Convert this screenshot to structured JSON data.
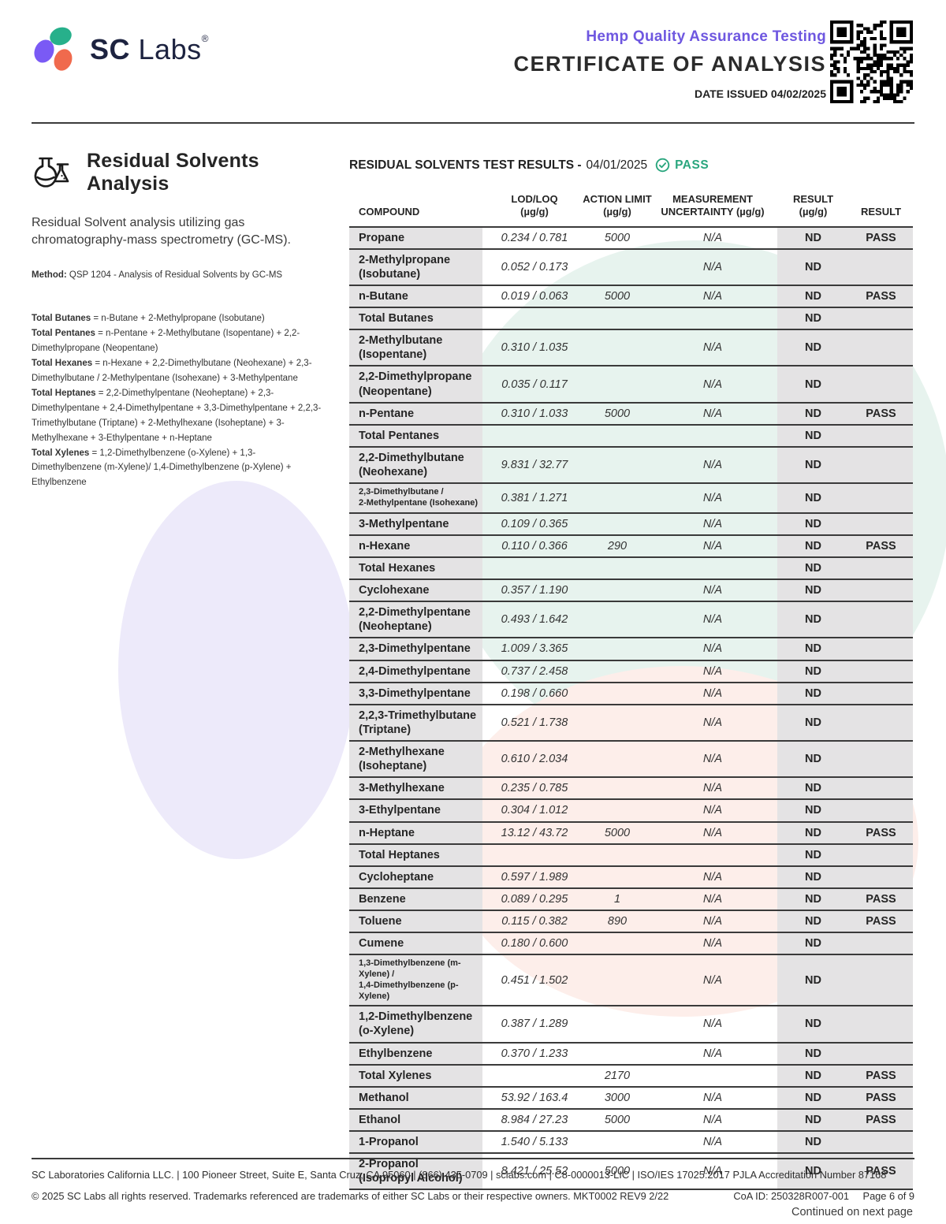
{
  "header": {
    "brand_sc": "SC",
    "brand_labs": "Labs",
    "brand_reg": "®",
    "program": "Hemp Quality Assurance Testing",
    "title": "CERTIFICATE OF ANALYSIS",
    "date_issued": "DATE ISSUED 04/02/2025"
  },
  "section": {
    "title": "Residual Solvents Analysis",
    "description": "Residual Solvent analysis utilizing gas chromatography-mass spectrometry (GC-MS).",
    "method_label": "Method:",
    "method_text": " QSP 1204 - Analysis of Residual Solvents by GC-MS",
    "notes": [
      {
        "label": "Total Butanes",
        "text": " = n-Butane + 2-Methylpropane (Isobutane)"
      },
      {
        "label": "Total Pentanes",
        "text": " = n-Pentane + 2-Methylbutane (Isopentane) + 2,2-Dimethylpropane (Neopentane)"
      },
      {
        "label": "Total Hexanes",
        "text": " = n-Hexane + 2,2-Dimethylbutane (Neohexane) + 2,3-Dimethylbutane / 2-Methylpentane (Isohexane) + 3-Methylpentane"
      },
      {
        "label": "Total Heptanes",
        "text": " = 2,2-Dimethylpentane (Neoheptane) + 2,3-Dimethylpentane + 2,4-Dimethylpentane + 3,3-Dimethylpentane + 2,2,3-Trimethylbutane (Triptane) + 2-Methylhexane (Isoheptane) + 3-Methylhexane + 3-Ethylpentane + n-Heptane"
      },
      {
        "label": "Total Xylenes",
        "text": " = 1,2-Dimethylbenzene (o-Xylene) + 1,3-Dimethylbenzene (m-Xylene)/ 1,4-Dimethylbenzene (p-Xylene) + Ethylbenzene"
      }
    ]
  },
  "results": {
    "title": "RESIDUAL SOLVENTS TEST RESULTS -",
    "date": "04/01/2025",
    "status": "PASS",
    "columns": [
      {
        "l1": "COMPOUND",
        "l2": ""
      },
      {
        "l1": "LOD/LOQ",
        "l2": "(µg/g)"
      },
      {
        "l1": "ACTION LIMIT",
        "l2": "(µg/g)"
      },
      {
        "l1": "MEASUREMENT",
        "l2": "UNCERTAINTY (µg/g)"
      },
      {
        "l1": "RESULT",
        "l2": "(µg/g)"
      },
      {
        "l1": "RESULT",
        "l2": ""
      }
    ],
    "rows": [
      {
        "name": "Propane",
        "name2": "",
        "small": false,
        "lod": "0.234 / 0.781",
        "limit": "5000",
        "unc": "N/A",
        "result": "ND",
        "pass": "PASS"
      },
      {
        "name": "2-Methylpropane",
        "name2": "(Isobutane)",
        "small": false,
        "lod": "0.052 / 0.173",
        "limit": "",
        "unc": "N/A",
        "result": "ND",
        "pass": ""
      },
      {
        "name": "n-Butane",
        "name2": "",
        "small": false,
        "lod": "0.019 / 0.063",
        "limit": "5000",
        "unc": "N/A",
        "result": "ND",
        "pass": "PASS"
      },
      {
        "name": "Total Butanes",
        "name2": "",
        "small": false,
        "lod": "",
        "limit": "",
        "unc": "",
        "result": "ND",
        "pass": ""
      },
      {
        "name": "2-Methylbutane",
        "name2": "(Isopentane)",
        "small": false,
        "lod": "0.310 / 1.035",
        "limit": "",
        "unc": "N/A",
        "result": "ND",
        "pass": ""
      },
      {
        "name": "2,2-Dimethylpropane",
        "name2": "(Neopentane)",
        "small": false,
        "lod": "0.035 / 0.117",
        "limit": "",
        "unc": "N/A",
        "result": "ND",
        "pass": ""
      },
      {
        "name": "n-Pentane",
        "name2": "",
        "small": false,
        "lod": "0.310 / 1.033",
        "limit": "5000",
        "unc": "N/A",
        "result": "ND",
        "pass": "PASS"
      },
      {
        "name": "Total Pentanes",
        "name2": "",
        "small": false,
        "lod": "",
        "limit": "",
        "unc": "",
        "result": "ND",
        "pass": ""
      },
      {
        "name": "2,2-Dimethylbutane",
        "name2": "(Neohexane)",
        "small": false,
        "lod": "9.831 / 32.77",
        "limit": "",
        "unc": "N/A",
        "result": "ND",
        "pass": ""
      },
      {
        "name": "2,3-Dimethylbutane /",
        "name2": "2-Methylpentane (Isohexane)",
        "small": true,
        "lod": "0.381 / 1.271",
        "limit": "",
        "unc": "N/A",
        "result": "ND",
        "pass": ""
      },
      {
        "name": "3-Methylpentane",
        "name2": "",
        "small": false,
        "lod": "0.109 / 0.365",
        "limit": "",
        "unc": "N/A",
        "result": "ND",
        "pass": ""
      },
      {
        "name": "n-Hexane",
        "name2": "",
        "small": false,
        "lod": "0.110 / 0.366",
        "limit": "290",
        "unc": "N/A",
        "result": "ND",
        "pass": "PASS"
      },
      {
        "name": "Total Hexanes",
        "name2": "",
        "small": false,
        "lod": "",
        "limit": "",
        "unc": "",
        "result": "ND",
        "pass": ""
      },
      {
        "name": "Cyclohexane",
        "name2": "",
        "small": false,
        "lod": "0.357 / 1.190",
        "limit": "",
        "unc": "N/A",
        "result": "ND",
        "pass": ""
      },
      {
        "name": "2,2-Dimethylpentane",
        "name2": "(Neoheptane)",
        "small": false,
        "lod": "0.493 / 1.642",
        "limit": "",
        "unc": "N/A",
        "result": "ND",
        "pass": ""
      },
      {
        "name": "2,3-Dimethylpentane",
        "name2": "",
        "small": false,
        "lod": "1.009 / 3.365",
        "limit": "",
        "unc": "N/A",
        "result": "ND",
        "pass": ""
      },
      {
        "name": "2,4-Dimethylpentane",
        "name2": "",
        "small": false,
        "lod": "0.737 / 2.458",
        "limit": "",
        "unc": "N/A",
        "result": "ND",
        "pass": ""
      },
      {
        "name": "3,3-Dimethylpentane",
        "name2": "",
        "small": false,
        "lod": "0.198 / 0.660",
        "limit": "",
        "unc": "N/A",
        "result": "ND",
        "pass": ""
      },
      {
        "name": "2,2,3-Trimethylbutane",
        "name2": "(Triptane)",
        "small": false,
        "lod": "0.521 / 1.738",
        "limit": "",
        "unc": "N/A",
        "result": "ND",
        "pass": ""
      },
      {
        "name": "2-Methylhexane",
        "name2": "(Isoheptane)",
        "small": false,
        "lod": "0.610 / 2.034",
        "limit": "",
        "unc": "N/A",
        "result": "ND",
        "pass": ""
      },
      {
        "name": "3-Methylhexane",
        "name2": "",
        "small": false,
        "lod": "0.235 / 0.785",
        "limit": "",
        "unc": "N/A",
        "result": "ND",
        "pass": ""
      },
      {
        "name": "3-Ethylpentane",
        "name2": "",
        "small": false,
        "lod": "0.304 / 1.012",
        "limit": "",
        "unc": "N/A",
        "result": "ND",
        "pass": ""
      },
      {
        "name": "n-Heptane",
        "name2": "",
        "small": false,
        "lod": "13.12 / 43.72",
        "limit": "5000",
        "unc": "N/A",
        "result": "ND",
        "pass": "PASS"
      },
      {
        "name": "Total Heptanes",
        "name2": "",
        "small": false,
        "lod": "",
        "limit": "",
        "unc": "",
        "result": "ND",
        "pass": ""
      },
      {
        "name": "Cycloheptane",
        "name2": "",
        "small": false,
        "lod": "0.597 / 1.989",
        "limit": "",
        "unc": "N/A",
        "result": "ND",
        "pass": ""
      },
      {
        "name": "Benzene",
        "name2": "",
        "small": false,
        "lod": "0.089 / 0.295",
        "limit": "1",
        "unc": "N/A",
        "result": "ND",
        "pass": "PASS"
      },
      {
        "name": "Toluene",
        "name2": "",
        "small": false,
        "lod": "0.115 / 0.382",
        "limit": "890",
        "unc": "N/A",
        "result": "ND",
        "pass": "PASS"
      },
      {
        "name": "Cumene",
        "name2": "",
        "small": false,
        "lod": "0.180 / 0.600",
        "limit": "",
        "unc": "N/A",
        "result": "ND",
        "pass": ""
      },
      {
        "name": "1,3-Dimethylbenzene (m-Xylene) /",
        "name2": "1,4-Dimethylbenzene (p-Xylene)",
        "small": true,
        "lod": "0.451 / 1.502",
        "limit": "",
        "unc": "N/A",
        "result": "ND",
        "pass": ""
      },
      {
        "name": "1,2-Dimethylbenzene",
        "name2": "(o-Xylene)",
        "small": false,
        "lod": "0.387 / 1.289",
        "limit": "",
        "unc": "N/A",
        "result": "ND",
        "pass": ""
      },
      {
        "name": "Ethylbenzene",
        "name2": "",
        "small": false,
        "lod": "0.370 / 1.233",
        "limit": "",
        "unc": "N/A",
        "result": "ND",
        "pass": ""
      },
      {
        "name": "Total Xylenes",
        "name2": "",
        "small": false,
        "lod": "",
        "limit": "2170",
        "unc": "",
        "result": "ND",
        "pass": "PASS"
      },
      {
        "name": "Methanol",
        "name2": "",
        "small": false,
        "lod": "53.92 / 163.4",
        "limit": "3000",
        "unc": "N/A",
        "result": "ND",
        "pass": "PASS"
      },
      {
        "name": "Ethanol",
        "name2": "",
        "small": false,
        "lod": "8.984 / 27.23",
        "limit": "5000",
        "unc": "N/A",
        "result": "ND",
        "pass": "PASS"
      },
      {
        "name": "1-Propanol",
        "name2": "",
        "small": false,
        "lod": "1.540 / 5.133",
        "limit": "",
        "unc": "N/A",
        "result": "ND",
        "pass": ""
      },
      {
        "name": "2-Propanol",
        "name2": "(Isopropyl Alcohol)",
        "small": false,
        "lod": "8.421 / 25.52",
        "limit": "5000",
        "unc": "N/A",
        "result": "ND",
        "pass": "PASS"
      }
    ]
  },
  "continued": "Continued on next page",
  "footer": {
    "line1": "SC Laboratories California LLC. | 100 Pioneer Street, Suite E, Santa Cruz, CA 95060 | (866) 435-0709 | sclabs.com | C8-0000013-LIC | ISO/IES 17025:2017 PJLA Accreditation Number 87168",
    "line2": "© 2025 SC Labs all rights reserved. Trademarks referenced are trademarks of either SC Labs or their respective owners. MKT0002 REV9 2/22",
    "coa_id": "CoA ID: 250328R007-001",
    "page": "Page 6 of 9"
  },
  "colors": {
    "brand_purple": "#7a5af5",
    "brand_green": "#27b08b",
    "brand_orange": "#f06a4d",
    "accent_purple": "#6e57e0",
    "pass_teal": "#2aa67e",
    "navy": "#1d2340"
  }
}
